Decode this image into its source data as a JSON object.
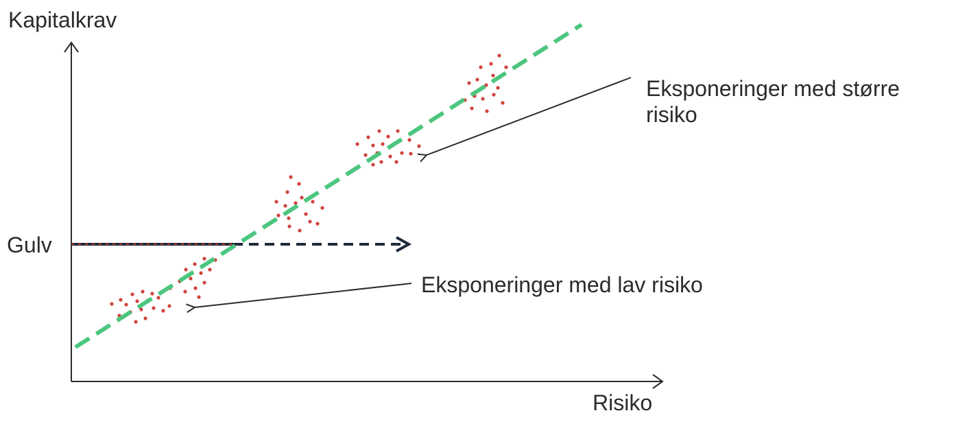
{
  "diagram": {
    "y_axis_label": "Kapitalkrav",
    "x_axis_label": "Risiko",
    "floor_label": "Gulv",
    "annotations": {
      "high_risk_line1": "Eksponeringer med større",
      "high_risk_line2": "risiko",
      "low_risk": "Eksponeringer med lav risiko"
    }
  },
  "colors": {
    "axis": "#2b2b2b",
    "trend_line": "#4cc67f",
    "floor_line": "#1f2a3a",
    "floor_line_solid_overlay": "#c0392b",
    "points": "#d0423c",
    "annotation_arrow": "#2b2b2b"
  },
  "icons": {
    "axis_arrow": "arrow-head-icon",
    "floor_arrow": "arrow-head-icon"
  }
}
